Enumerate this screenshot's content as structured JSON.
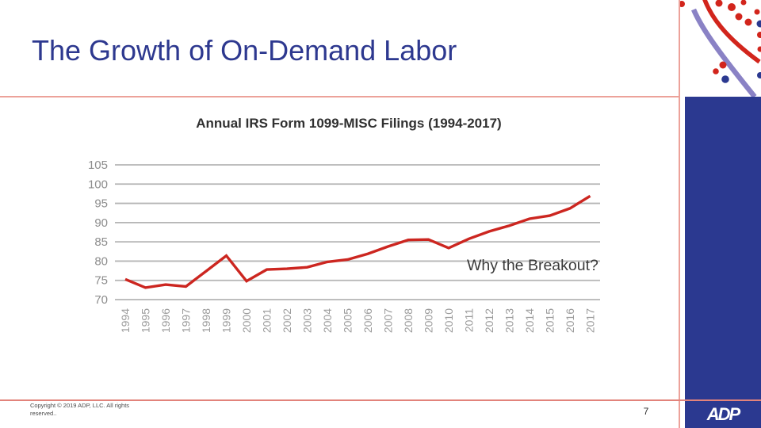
{
  "slide": {
    "title": "The Growth of On-Demand Labor",
    "page_number": "7",
    "copyright_line1": "Copyright © 2019 ADP, LLC. All rights",
    "copyright_line2": "reserved..",
    "logo_text": "ADP"
  },
  "chart_data": {
    "type": "line",
    "title": "Annual IRS Form 1099-MISC Filings (1994-2017)",
    "categories": [
      "1994",
      "1995",
      "1996",
      "1997",
      "1998",
      "1999",
      "2000",
      "2001",
      "2002",
      "2003",
      "2004",
      "2005",
      "2006",
      "2007",
      "2008",
      "2009",
      "2010",
      "2011",
      "2012",
      "2013",
      "2014",
      "2015",
      "2016",
      "2017"
    ],
    "values": [
      75.3,
      73.1,
      73.9,
      73.4,
      77.4,
      81.4,
      74.8,
      77.8,
      78.0,
      78.4,
      79.8,
      80.4,
      81.9,
      83.8,
      85.5,
      85.6,
      83.4,
      85.8,
      87.7,
      89.2,
      91.0,
      91.8,
      93.7,
      96.9
    ],
    "yticks": [
      105,
      100,
      95,
      90,
      85,
      80,
      75,
      70
    ],
    "ylim": [
      70,
      105
    ],
    "grid": true,
    "legend": "none",
    "annotation": "Why the Breakout?",
    "line_color": "#cc2620"
  },
  "colors": {
    "title_blue": "#2d388f",
    "sidebar_blue": "#2b3990",
    "hairline_salmon": "#eca29a",
    "chart_red": "#cc2620",
    "gridline_gray": "#b5b5b5",
    "swoosh_purple": "#8a82c5",
    "dot_red": "#d2251c",
    "dot_blue": "#2b3990"
  }
}
